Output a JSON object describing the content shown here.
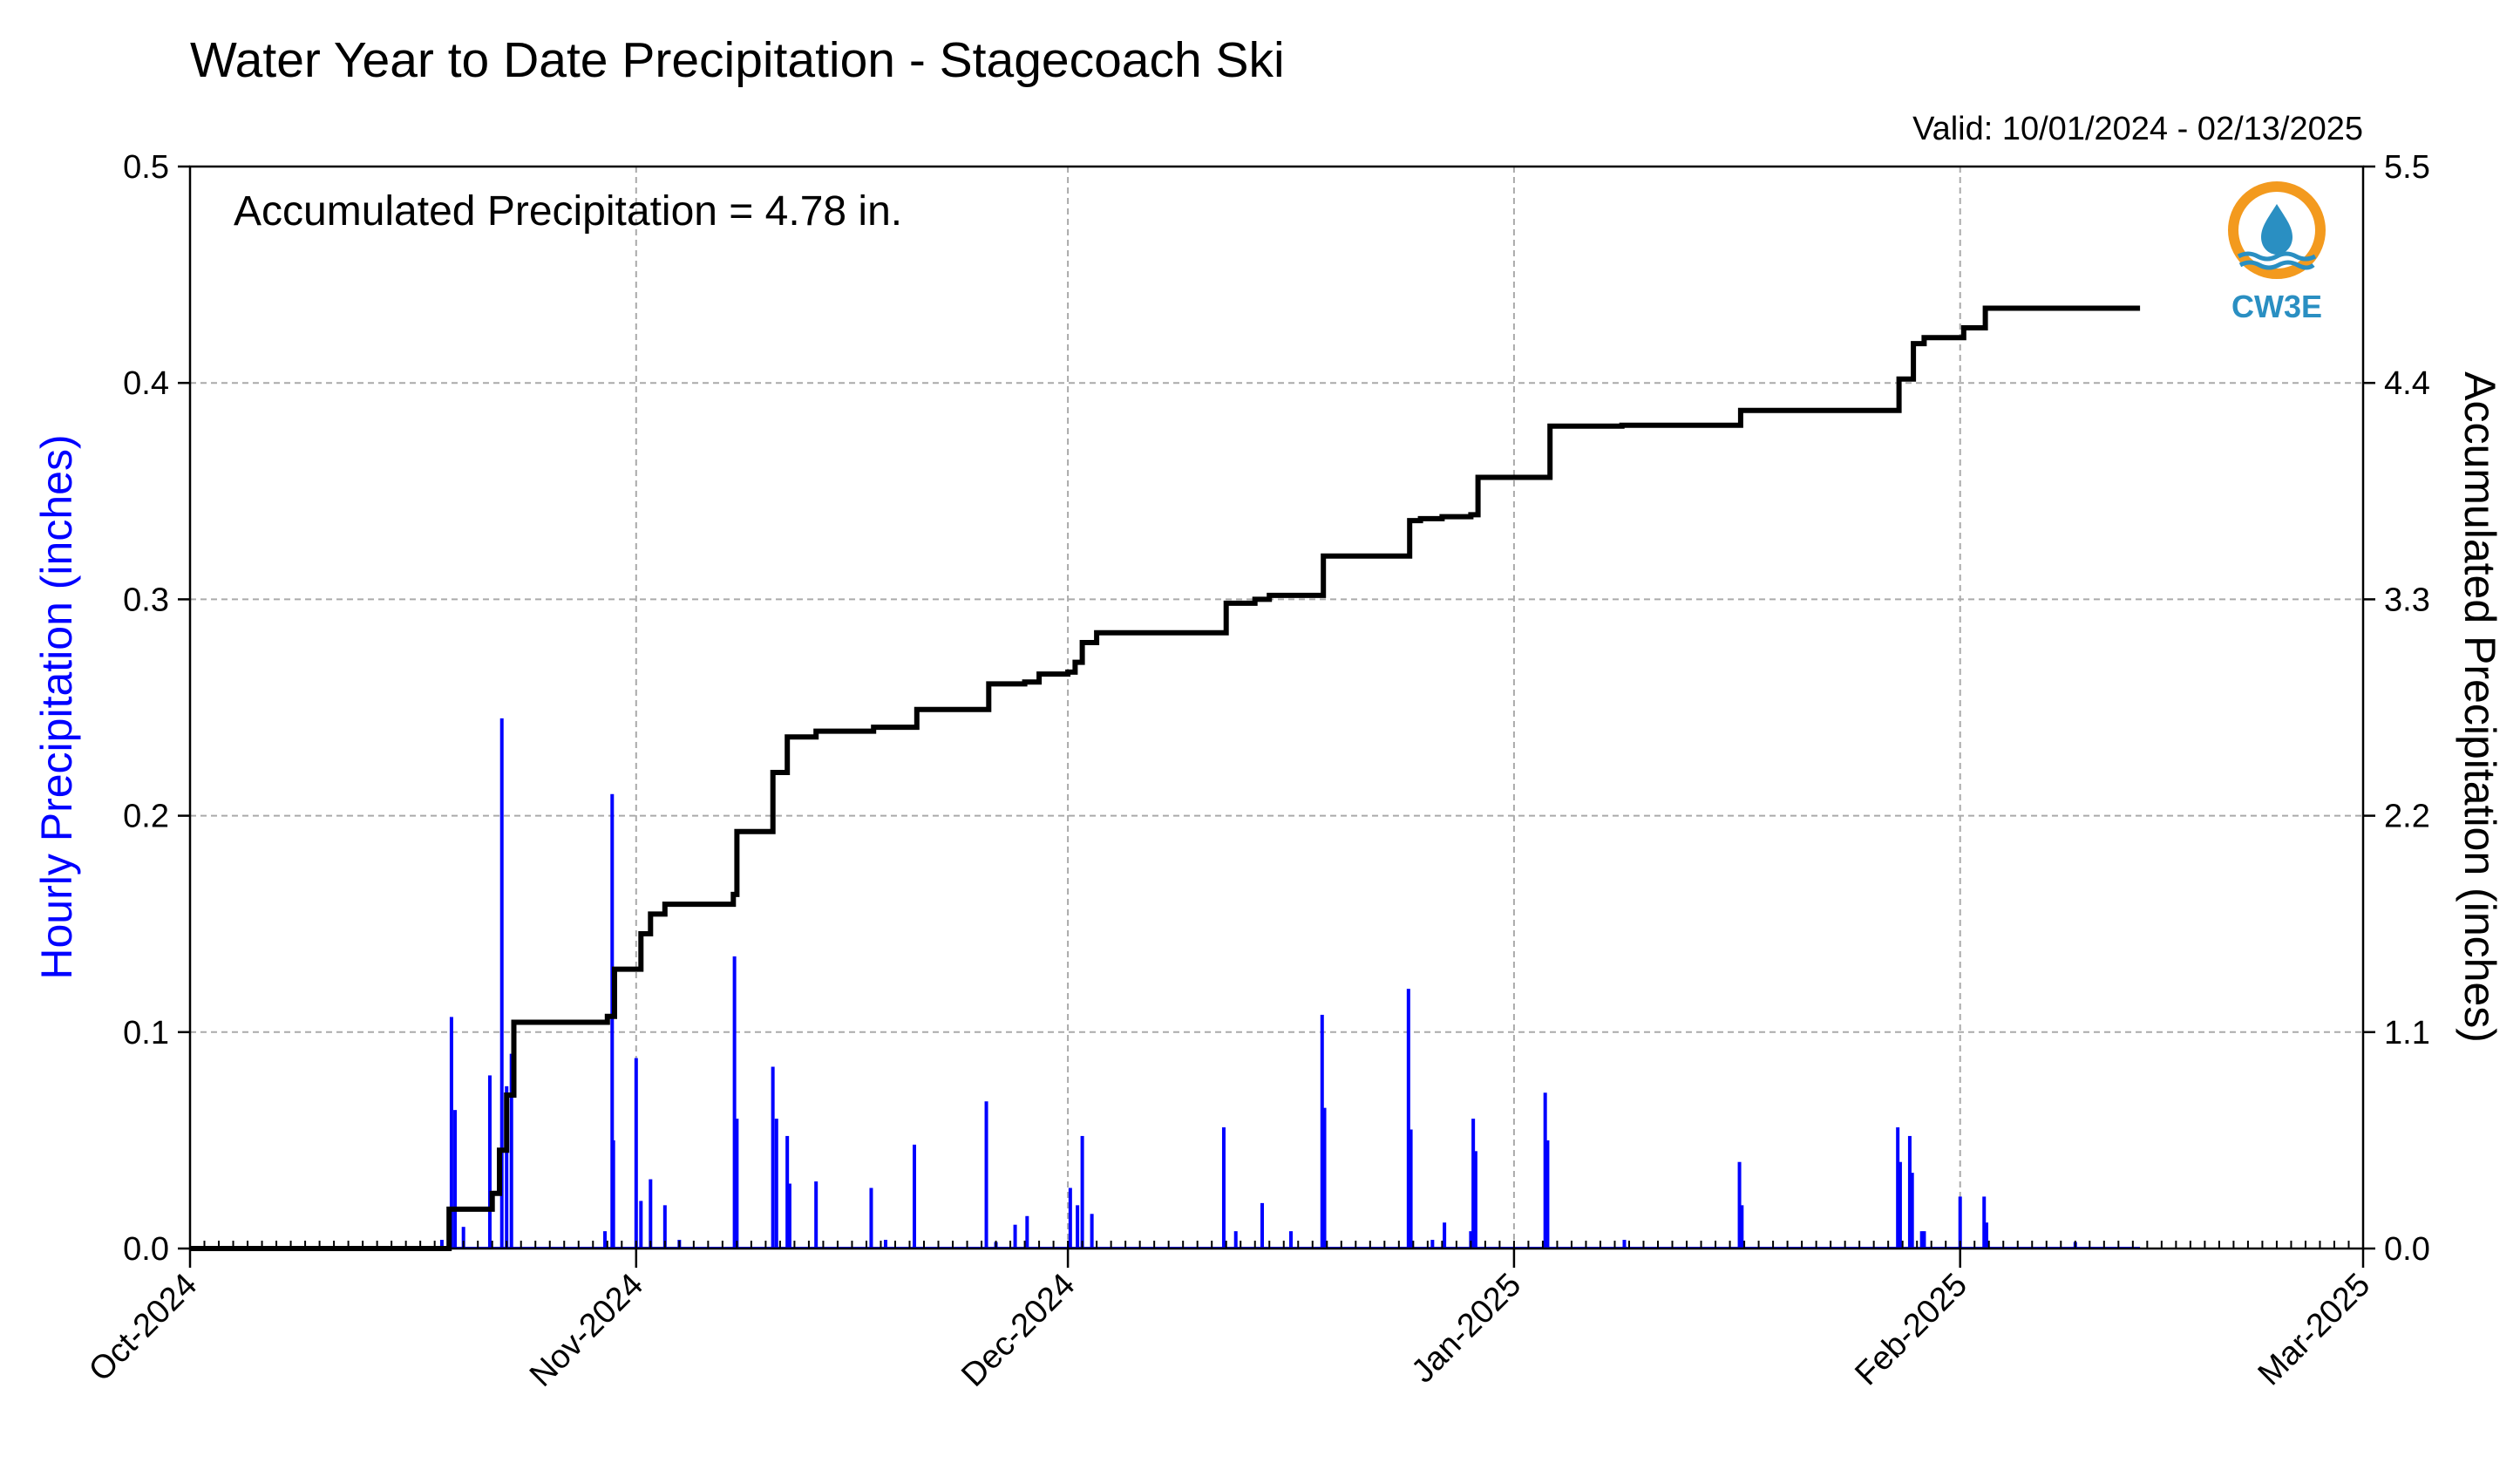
{
  "chart_data": {
    "type": "bar+line",
    "title": "Water Year to Date Precipitation - Stagecoach Ski",
    "valid_text": "Valid: 10/01/2024 - 02/13/2025",
    "annotation": "Accumulated Precipitation = 4.78 in.",
    "ylabel_left": "Hourly Precipitation (inches)",
    "ylabel_right": "Accumulated Precipitation (inches)",
    "ylim_left": [
      0,
      0.5
    ],
    "ylim_right": [
      0,
      5.5
    ],
    "xlim": [
      "2024-10-01",
      "2025-03-01"
    ],
    "x_ticks": [
      {
        "date": "2024-10-01",
        "label": "Oct-2024"
      },
      {
        "date": "2024-11-01",
        "label": "Nov-2024"
      },
      {
        "date": "2024-12-01",
        "label": "Dec-2024"
      },
      {
        "date": "2025-01-01",
        "label": "Jan-2025"
      },
      {
        "date": "2025-02-01",
        "label": "Feb-2025"
      },
      {
        "date": "2025-03-01",
        "label": "Mar-2025"
      }
    ],
    "y_ticks_left": [
      "0.0",
      "0.1",
      "0.2",
      "0.3",
      "0.4",
      "0.5"
    ],
    "y_ticks_right": [
      "0.0",
      "1.1",
      "2.2",
      "3.3",
      "4.4",
      "5.5"
    ],
    "grid": true,
    "colors": {
      "hourly": "#0000ff",
      "accumulated": "#000000",
      "ylabel_left": "#0000ff",
      "grid": "#aaaaaa"
    },
    "series": [
      {
        "name": "Hourly Precipitation",
        "axis": "left",
        "style": "bars",
        "points": [
          [
            "2024-10-18T12",
            0.004
          ],
          [
            "2024-10-19T04",
            0.107
          ],
          [
            "2024-10-19T10",
            0.064
          ],
          [
            "2024-10-20T00",
            0.01
          ],
          [
            "2024-10-21T20",
            0.08
          ],
          [
            "2024-10-22T16",
            0.245
          ],
          [
            "2024-10-23T00",
            0.075
          ],
          [
            "2024-10-23T08",
            0.09
          ],
          [
            "2024-10-29T20",
            0.008
          ],
          [
            "2024-10-30T08",
            0.21
          ],
          [
            "2024-10-30T10",
            0.05
          ],
          [
            "2024-11-01T00",
            0.088
          ],
          [
            "2024-11-01T08",
            0.022
          ],
          [
            "2024-11-02T00",
            0.032
          ],
          [
            "2024-11-03T00",
            0.02
          ],
          [
            "2024-11-04T00",
            0.004
          ],
          [
            "2024-11-07T20",
            0.135
          ],
          [
            "2024-11-08T00",
            0.06
          ],
          [
            "2024-11-10T12",
            0.084
          ],
          [
            "2024-11-10T18",
            0.06
          ],
          [
            "2024-11-11T12",
            0.052
          ],
          [
            "2024-11-11T16",
            0.03
          ],
          [
            "2024-11-13T12",
            0.031
          ],
          [
            "2024-11-17T08",
            0.028
          ],
          [
            "2024-11-18T08",
            0.004
          ],
          [
            "2024-11-20T08",
            0.048
          ],
          [
            "2024-11-25T08",
            0.068
          ],
          [
            "2024-11-26T00",
            0.003
          ],
          [
            "2024-11-27T08",
            0.011
          ],
          [
            "2024-11-28T04",
            0.015
          ],
          [
            "2024-12-01T04",
            0.028
          ],
          [
            "2024-12-01T16",
            0.02
          ],
          [
            "2024-12-02T00",
            0.052
          ],
          [
            "2024-12-02T16",
            0.016
          ],
          [
            "2024-12-11T20",
            0.056
          ],
          [
            "2024-12-12T16",
            0.008
          ],
          [
            "2024-12-14T12",
            0.021
          ],
          [
            "2024-12-16T12",
            0.008
          ],
          [
            "2024-12-18T16",
            0.108
          ],
          [
            "2024-12-18T20",
            0.065
          ],
          [
            "2024-12-24T16",
            0.12
          ],
          [
            "2024-12-24T20",
            0.055
          ],
          [
            "2024-12-26T08",
            0.004
          ],
          [
            "2024-12-27T04",
            0.012
          ],
          [
            "2024-12-29T04",
            0.06
          ],
          [
            "2024-12-29T08",
            0.045
          ],
          [
            "2024-12-29T00",
            0.008
          ],
          [
            "2025-01-03T04",
            0.072
          ],
          [
            "2025-01-03T08",
            0.05
          ],
          [
            "2025-01-08T16",
            0.004
          ],
          [
            "2025-01-16T16",
            0.04
          ],
          [
            "2025-01-16T20",
            0.02
          ],
          [
            "2025-01-27T16",
            0.056
          ],
          [
            "2025-01-27T20",
            0.04
          ],
          [
            "2025-01-28T12",
            0.052
          ],
          [
            "2025-01-28T16",
            0.035
          ],
          [
            "2025-01-29T08",
            0.008
          ],
          [
            "2025-01-29T12",
            0.008
          ],
          [
            "2025-02-01T00",
            0.024
          ],
          [
            "2025-02-02T16",
            0.024
          ],
          [
            "2025-02-02T20",
            0.012
          ],
          [
            "2025-02-09T00",
            0.003
          ]
        ]
      },
      {
        "name": "Accumulated Precipitation",
        "axis": "right",
        "style": "step",
        "points": [
          [
            "2024-10-01",
            0.0
          ],
          [
            "2024-10-18T12",
            0.0
          ],
          [
            "2024-10-19T00",
            0.2
          ],
          [
            "2024-10-21T00",
            0.2
          ],
          [
            "2024-10-22T00",
            0.28
          ],
          [
            "2024-10-22T12",
            0.5
          ],
          [
            "2024-10-23T00",
            0.78
          ],
          [
            "2024-10-23T12",
            1.15
          ],
          [
            "2024-10-29T00",
            1.15
          ],
          [
            "2024-10-30T00",
            1.18
          ],
          [
            "2024-10-30T12",
            1.42
          ],
          [
            "2024-11-01T00",
            1.42
          ],
          [
            "2024-11-01T08",
            1.6
          ],
          [
            "2024-11-02T00",
            1.7
          ],
          [
            "2024-11-03T00",
            1.75
          ],
          [
            "2024-11-07T00",
            1.75
          ],
          [
            "2024-11-07T18",
            1.8
          ],
          [
            "2024-11-08T00",
            2.12
          ],
          [
            "2024-11-10T00",
            2.12
          ],
          [
            "2024-11-10T12",
            2.42
          ],
          [
            "2024-11-11T00",
            2.42
          ],
          [
            "2024-11-11T12",
            2.6
          ],
          [
            "2024-11-13T00",
            2.6
          ],
          [
            "2024-11-13T12",
            2.63
          ],
          [
            "2024-11-17T00",
            2.63
          ],
          [
            "2024-11-17T12",
            2.65
          ],
          [
            "2024-11-20T00",
            2.65
          ],
          [
            "2024-11-20T12",
            2.74
          ],
          [
            "2024-11-25T00",
            2.74
          ],
          [
            "2024-11-25T12",
            2.87
          ],
          [
            "2024-11-28T00",
            2.88
          ],
          [
            "2024-11-29T00",
            2.92
          ],
          [
            "2024-12-01T00",
            2.93
          ],
          [
            "2024-12-01T12",
            2.98
          ],
          [
            "2024-12-02T00",
            3.08
          ],
          [
            "2024-12-03T00",
            3.13
          ],
          [
            "2024-12-11T12",
            3.13
          ],
          [
            "2024-12-12T00",
            3.28
          ],
          [
            "2024-12-14T00",
            3.3
          ],
          [
            "2024-12-15T00",
            3.32
          ],
          [
            "2024-12-18T12",
            3.32
          ],
          [
            "2024-12-18T18",
            3.52
          ],
          [
            "2024-12-24T12",
            3.52
          ],
          [
            "2024-12-24T18",
            3.7
          ],
          [
            "2024-12-25T12",
            3.71
          ],
          [
            "2024-12-27T00",
            3.72
          ],
          [
            "2024-12-29T00",
            3.73
          ],
          [
            "2024-12-29T12",
            3.92
          ],
          [
            "2025-01-03T00",
            3.92
          ],
          [
            "2025-01-03T12",
            4.18
          ],
          [
            "2025-01-08T00",
            4.18
          ],
          [
            "2025-01-08T12",
            4.185
          ],
          [
            "2025-01-16T12",
            4.185
          ],
          [
            "2025-01-16T18",
            4.26
          ],
          [
            "2025-01-27T12",
            4.26
          ],
          [
            "2025-01-27T18",
            4.42
          ],
          [
            "2025-01-28T12",
            4.42
          ],
          [
            "2025-01-28T18",
            4.6
          ],
          [
            "2025-01-29T12",
            4.63
          ],
          [
            "2025-02-01T00",
            4.63
          ],
          [
            "2025-02-01T06",
            4.68
          ],
          [
            "2025-02-02T12",
            4.68
          ],
          [
            "2025-02-02T18",
            4.78
          ],
          [
            "2025-02-13T12",
            4.78
          ]
        ]
      }
    ]
  },
  "logo": {
    "text": "CW3E",
    "ring_color": "#f39a1e",
    "wave_color": "#2a8fc2",
    "text_color": "#2a8fc2",
    "icon": "water-drop-icon"
  }
}
